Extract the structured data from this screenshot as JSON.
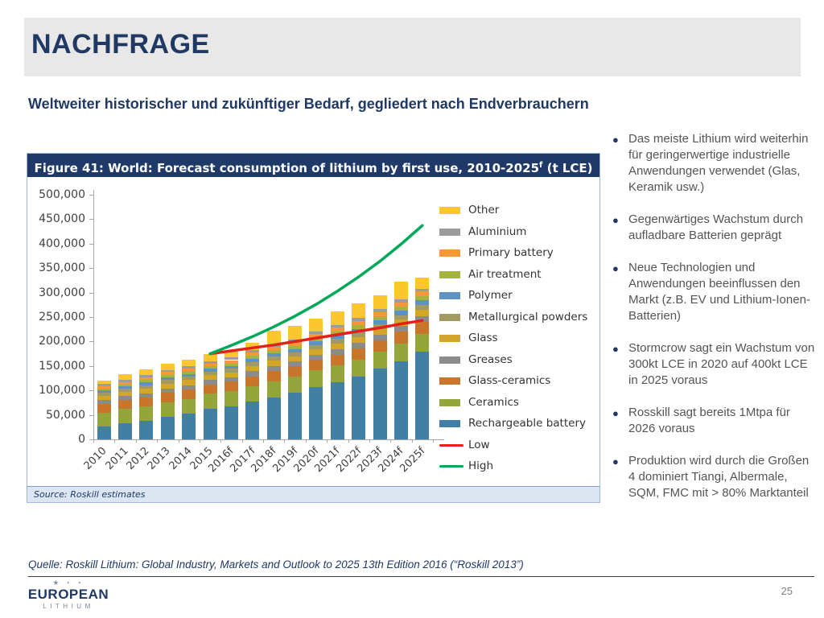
{
  "slide": {
    "title": "NACHFRAGE",
    "subtitle": "Weltweiter historischer und zukünftiger Bedarf, gegliedert nach Endverbrauchern",
    "footer_source": "Quelle: Roskill Lithium: Global Industry, Markets and Outlook to 2025 13th Edition 2016 (“Roskill 2013”)",
    "page_number": "25",
    "logo": {
      "stars": "★ ⋆ ⋆",
      "line1": "EUROPEAN",
      "line2": "LITHIUM"
    }
  },
  "bullets": [
    "Das meiste Lithium wird weiterhin für geringerwertige industrielle Anwendungen verwendet (Glas, Keramik usw.)",
    "Gegenwärtiges Wachstum durch aufladbare Batterien geprägt",
    "Neue Technologien und Anwendungen beeinflussen den Markt (z.B. EV und Lithium-Ionen-Batterien)",
    "Stormcrow sagt ein Wachstum von 300kt LCE in 2020 auf 400kt LCE in 2025 voraus",
    "Rosskill sagt bereits 1Mtpa für 2026 voraus",
    "Produktion wird durch die Großen 4 dominiert Tiangi, Albermale, SQM, FMC mit > 80% Marktanteil"
  ],
  "figure": {
    "title_prefix": "Figure 41: World: Forecast consumption of lithium by first use, 2010-2025",
    "title_sup": "f",
    "title_suffix": " (t LCE)",
    "source": "Source: Roskill estimates"
  },
  "chart_data": {
    "type": "bar",
    "stacked": true,
    "title": "Figure 41: World: Forecast consumption of lithium by first use, 2010-2025f (t LCE)",
    "xlabel": "",
    "ylabel": "t LCE",
    "ylim": [
      0,
      500000
    ],
    "ytick_step": 50000,
    "grid": false,
    "legend_position": "right",
    "categories": [
      "2010",
      "2011",
      "2012",
      "2013",
      "2014",
      "2015",
      "2016f",
      "2017f",
      "2018f",
      "2019f",
      "2020f",
      "2021f",
      "2022f",
      "2023f",
      "2024f",
      "2025f"
    ],
    "series": [
      {
        "name": "Rechargeable battery",
        "color": "#417FA5",
        "values": [
          27000,
          33000,
          38000,
          46000,
          52000,
          62000,
          67000,
          77000,
          86000,
          95000,
          107000,
          117000,
          128000,
          144000,
          160000,
          180000
        ]
      },
      {
        "name": "Ceramics",
        "color": "#94A53C",
        "values": [
          28000,
          29000,
          30000,
          30000,
          31000,
          31000,
          31000,
          32000,
          33000,
          33000,
          34000,
          34000,
          35000,
          35000,
          36000,
          36000
        ]
      },
      {
        "name": "Glass-ceramics",
        "color": "#C8762B",
        "values": [
          17000,
          18000,
          18000,
          19000,
          19000,
          19000,
          20000,
          20000,
          21000,
          21000,
          22000,
          22000,
          23000,
          23000,
          24000,
          24000
        ]
      },
      {
        "name": "Greases",
        "color": "#8B8B8B",
        "values": [
          8000,
          8000,
          8000,
          9000,
          9000,
          9000,
          9000,
          10000,
          10000,
          10000,
          10000,
          11000,
          11000,
          11000,
          12000,
          12000
        ]
      },
      {
        "name": "Glass",
        "color": "#D3A629",
        "values": [
          9000,
          9000,
          10000,
          10000,
          10000,
          10000,
          10000,
          11000,
          11000,
          11000,
          12000,
          12000,
          12000,
          13000,
          13000,
          13000
        ]
      },
      {
        "name": "Metallurgical powders",
        "color": "#A39A63",
        "values": [
          6000,
          6000,
          7000,
          7000,
          7000,
          7000,
          7000,
          8000,
          8000,
          8000,
          8000,
          9000,
          9000,
          9000,
          9000,
          10000
        ]
      },
      {
        "name": "Polymer",
        "color": "#5C93C3",
        "values": [
          5000,
          5000,
          5000,
          6000,
          6000,
          6000,
          6000,
          7000,
          7000,
          7000,
          8000,
          8000,
          8000,
          9000,
          9000,
          9000
        ]
      },
      {
        "name": "Air treatment",
        "color": "#A6B33C",
        "values": [
          4000,
          4000,
          5000,
          5000,
          5000,
          5000,
          5000,
          6000,
          6000,
          6000,
          6000,
          7000,
          7000,
          7000,
          8000,
          8000
        ]
      },
      {
        "name": "Primary battery",
        "color": "#F79738",
        "values": [
          5000,
          5000,
          6000,
          6000,
          6000,
          6000,
          7000,
          7000,
          7000,
          8000,
          8000,
          8000,
          9000,
          9000,
          9000,
          10000
        ]
      },
      {
        "name": "Aluminium",
        "color": "#9C9C9C",
        "values": [
          4000,
          4000,
          4000,
          4000,
          5000,
          5000,
          5000,
          5000,
          5000,
          5000,
          6000,
          6000,
          6000,
          6000,
          6000,
          6000
        ]
      },
      {
        "name": "Other",
        "color": "#FCC62C",
        "values": [
          7000,
          12000,
          12000,
          13000,
          13000,
          15000,
          13000,
          14000,
          28000,
          28000,
          26000,
          28000,
          30000,
          29000,
          36000,
          22000
        ]
      }
    ],
    "lines": [
      {
        "name": "Low",
        "color": "#E32119",
        "start_index": 5,
        "values": [
          175000,
          181000,
          187000,
          193000,
          200000,
          207000,
          214000,
          221000,
          228000,
          236000,
          243000
        ]
      },
      {
        "name": "High",
        "color": "#00A859",
        "start_index": 5,
        "values": [
          175000,
          192000,
          210000,
          230000,
          252000,
          276000,
          303000,
          332000,
          364000,
          399000,
          437000
        ]
      }
    ],
    "legend": [
      {
        "label": "Other",
        "color": "#FCC62C",
        "type": "patch"
      },
      {
        "label": "Aluminium",
        "color": "#9C9C9C",
        "type": "patch"
      },
      {
        "label": "Primary battery",
        "color": "#F79738",
        "type": "patch"
      },
      {
        "label": "Air treatment",
        "color": "#A6B33C",
        "type": "patch"
      },
      {
        "label": "Polymer",
        "color": "#5C93C3",
        "type": "patch"
      },
      {
        "label": "Metallurgical powders",
        "color": "#A39A63",
        "type": "patch"
      },
      {
        "label": "Glass",
        "color": "#D3A629",
        "type": "patch"
      },
      {
        "label": "Greases",
        "color": "#8B8B8B",
        "type": "patch"
      },
      {
        "label": "Glass-ceramics",
        "color": "#C8762B",
        "type": "patch"
      },
      {
        "label": "Ceramics",
        "color": "#94A53C",
        "type": "patch"
      },
      {
        "label": "Rechargeable battery",
        "color": "#417FA5",
        "type": "patch"
      },
      {
        "label": "Low",
        "color": "#E32119",
        "type": "line"
      },
      {
        "label": "High",
        "color": "#00A859",
        "type": "line"
      }
    ],
    "source_note": "Source: Roskill estimates"
  },
  "colors": {
    "navy": "#1F3864",
    "figure_title_bar": "#1F3A68",
    "header_band": "#E8E8E8",
    "bullet_text": "#545454"
  }
}
